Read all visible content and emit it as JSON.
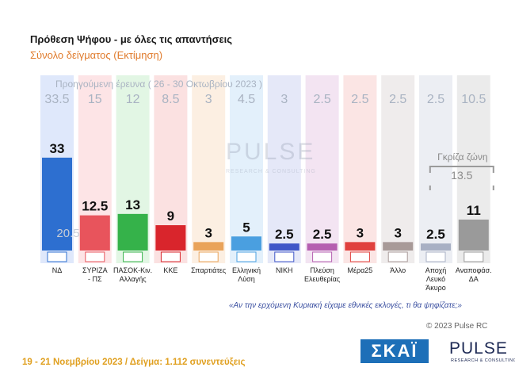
{
  "header": {
    "title": "Πρόθεση Ψήφου - με όλες τις απαντήσεις",
    "subtitle": "Σύνολο δείγματος   (Εκτίμηση)",
    "previous_label": "Προηγούμενη έρευνα  ( 26 - 30 Οκτωβρίου 2023 )"
  },
  "chart_data": {
    "type": "bar",
    "categories": [
      "ΝΔ",
      "ΣΥΡΙΖΑ - ΠΣ",
      "ΠΑΣΟΚ-Κιν. Αλλαγής",
      "ΚΚΕ",
      "Σπαρτιάτες",
      "Ελληνική Λύση",
      "ΝΙΚΗ",
      "Πλεύση Ελευθερίας",
      "Μέρα25",
      "Άλλο",
      "Αποχή Λευκό Άκυρο",
      "Αναποφάσ. ΔΑ"
    ],
    "category_lines": [
      [
        "ΝΔ"
      ],
      [
        "ΣΥΡΙΖΑ",
        "- ΠΣ"
      ],
      [
        "ΠΑΣΟΚ-Κιν.",
        "Αλλαγής"
      ],
      [
        "ΚΚΕ"
      ],
      [
        "Σπαρτιάτες"
      ],
      [
        "Ελληνική",
        "Λύση"
      ],
      [
        "ΝΙΚΗ"
      ],
      [
        "Πλεύση",
        "Ελευθερίας"
      ],
      [
        "Μέρα25"
      ],
      [
        "Άλλο"
      ],
      [
        "Αποχή",
        "Λευκό",
        "Άκυρο"
      ],
      [
        "Αναποφάσ.",
        "ΔΑ"
      ]
    ],
    "series": [
      {
        "values": [
          33,
          12.5,
          13,
          9,
          3,
          5,
          2.5,
          2.5,
          3,
          3,
          2.5,
          11
        ],
        "labels": [
          "33",
          "12.5",
          "13",
          "9",
          "3",
          "5",
          "2.5",
          "2.5",
          "3",
          "3",
          "2.5",
          "11"
        ]
      },
      {
        "values": [
          33.5,
          15,
          12,
          8.5,
          3,
          4.5,
          3,
          2.5,
          2.5,
          2.5,
          2.5,
          10.5
        ],
        "labels": [
          "33.5",
          "15",
          "12",
          "8.5",
          "3",
          "4.5",
          "3",
          "2.5",
          "2.5",
          "2.5",
          "2.5",
          "10.5"
        ]
      }
    ],
    "colors": [
      "#2d6fd0",
      "#e8545c",
      "#35b24a",
      "#d9252c",
      "#e9a35a",
      "#4a9fe0",
      "#3f56c8",
      "#b55fb0",
      "#e0413e",
      "#a89a98",
      "#a8b0c4",
      "#9a9a9a"
    ],
    "background_colors": [
      "#dfe8fb",
      "#fde4e6",
      "#e2f6e4",
      "#fbe1e1",
      "#fcefe2",
      "#e3f0fb",
      "#e5e8f8",
      "#f3e4f2",
      "#fbe5e4",
      "#efecec",
      "#eceef3",
      "#ebebeb"
    ],
    "annotations": [
      {
        "category": "ΝΔ",
        "text": "20.5"
      },
      {
        "category": "Αναποφάσ. ΔΑ",
        "text": "Γκρίζα ζώνη"
      },
      {
        "category": "Αναποφάσ. ΔΑ",
        "text": "13.5"
      }
    ],
    "grid": false,
    "legend": "none"
  },
  "footer": {
    "question": "«Αν την ερχόμενη Κυριακή είχαμε εθνικές εκλογές, τι θα ψηφίζατε;»",
    "copyright": "© 2023 Pulse RC",
    "survey_info": "19 - 21  Νοεμβρίου  2023  /  Δείγμα:  1.112 συνεντεύξεις"
  },
  "logos": {
    "skai": "ΣΚΑΪ",
    "pulse": "PULSE",
    "pulse_sub": "RESEARCH & CONSULTING"
  }
}
